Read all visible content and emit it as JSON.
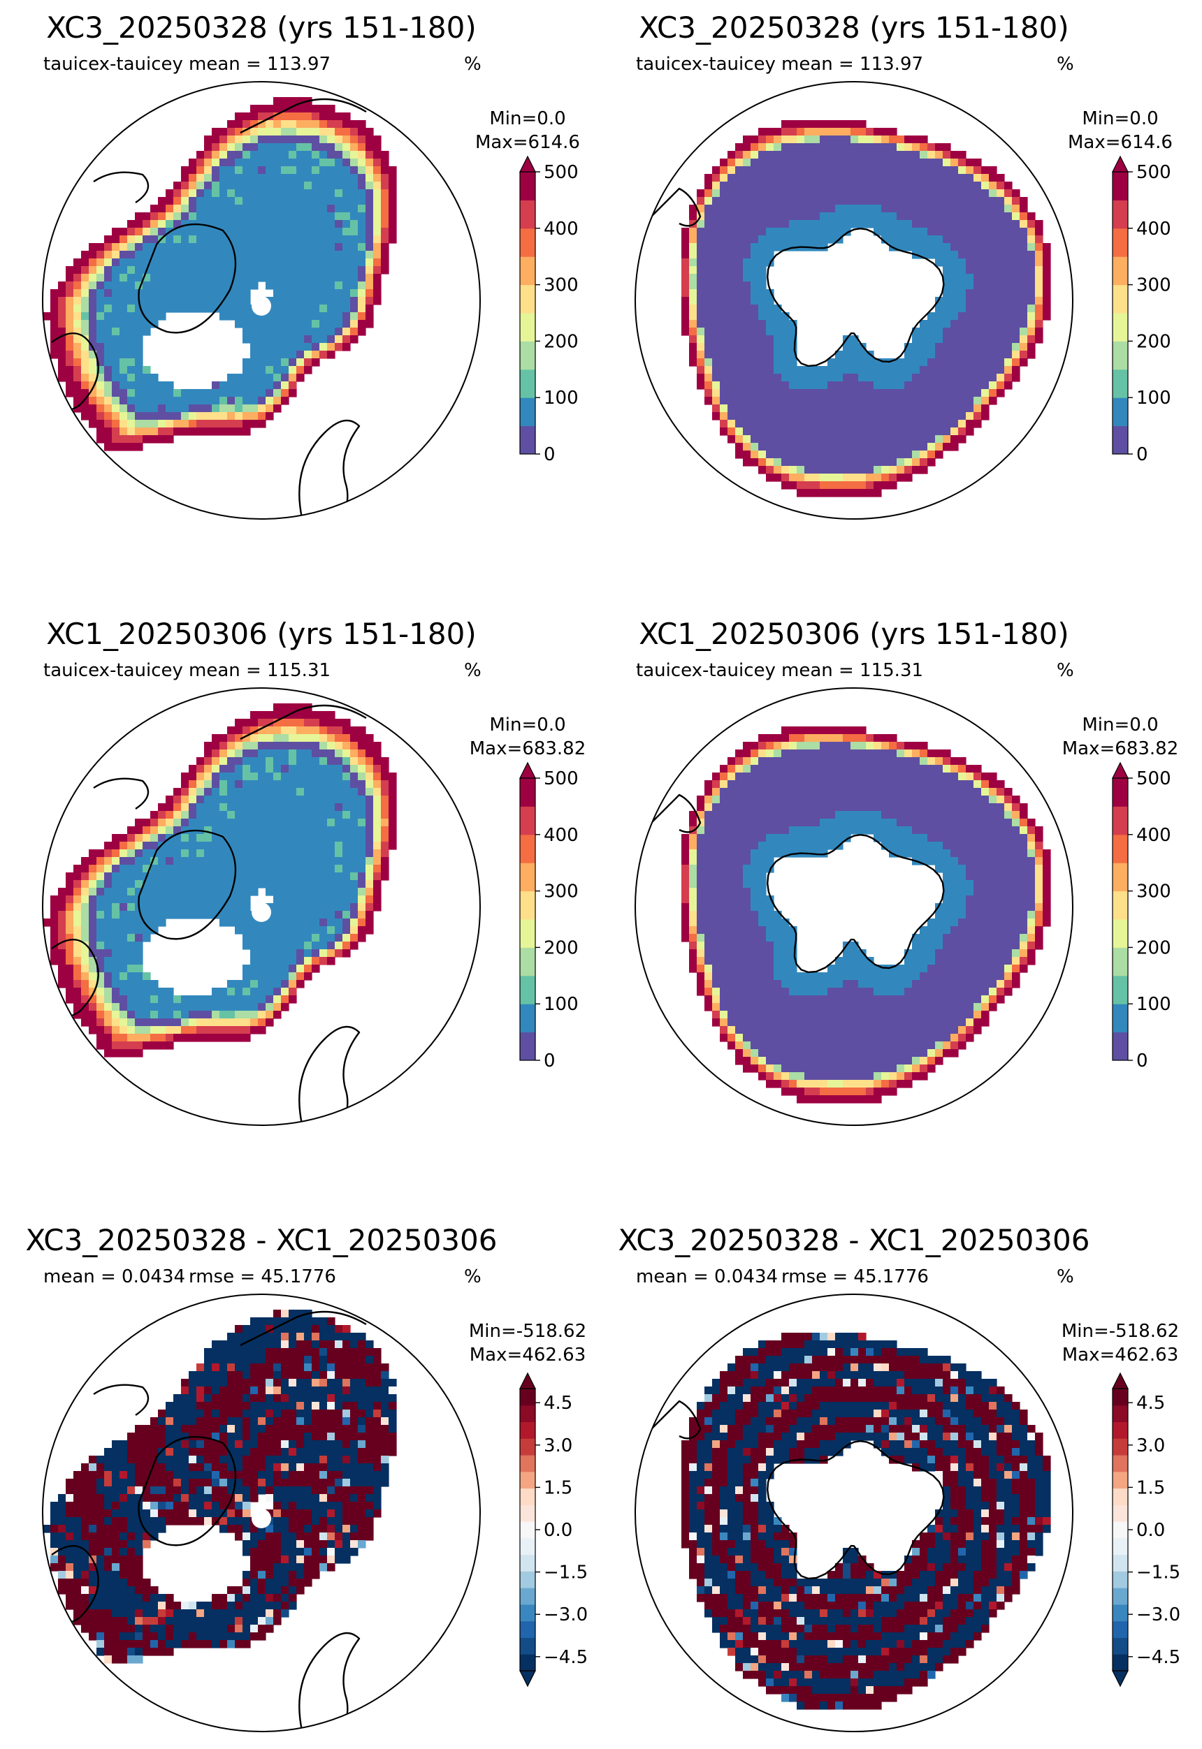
{
  "figure": {
    "panels": [
      {
        "title": "XC3_20250328 (yrs 151-180)",
        "left_label": "tauicex-tauicey",
        "mid_label": "mean = 113.97",
        "unit_label": "%",
        "min_label": "Min=0.0",
        "max_label": "Max=614.6",
        "hemisphere": "north",
        "scale": "seq",
        "variant": 0
      },
      {
        "title": "XC3_20250328 (yrs 151-180)",
        "left_label": "tauicex-tauicey",
        "mid_label": "mean = 113.97",
        "unit_label": "%",
        "min_label": "Min=0.0",
        "max_label": "Max=614.6",
        "hemisphere": "south",
        "scale": "seq",
        "variant": 0
      },
      {
        "title": "XC1_20250306 (yrs 151-180)",
        "left_label": "tauicex-tauicey",
        "mid_label": "mean = 115.31",
        "unit_label": "%",
        "min_label": "Min=0.0",
        "max_label": "Max=683.82",
        "hemisphere": "north",
        "scale": "seq",
        "variant": 1
      },
      {
        "title": "XC1_20250306 (yrs 151-180)",
        "left_label": "tauicex-tauicey",
        "mid_label": "mean = 115.31",
        "unit_label": "%",
        "min_label": "Min=0.0",
        "max_label": "Max=683.82",
        "hemisphere": "south",
        "scale": "seq",
        "variant": 1
      },
      {
        "title": "XC3_20250328 - XC1_20250306",
        "left_label": "mean = 0.0434",
        "mid_label": "rmse = 45.1776",
        "unit_label": "%",
        "min_label": "Min=-518.62",
        "max_label": "Max=462.63",
        "hemisphere": "north",
        "scale": "div",
        "variant": 2
      },
      {
        "title": "XC3_20250328 - XC1_20250306",
        "left_label": "mean = 0.0434",
        "mid_label": "rmse = 45.1776",
        "unit_label": "%",
        "min_label": "Min=-518.62",
        "max_label": "Max=462.63",
        "hemisphere": "south",
        "scale": "div",
        "variant": 2
      }
    ]
  },
  "colorbars": {
    "seq": {
      "ticks": [
        "0",
        "100",
        "200",
        "300",
        "400",
        "500"
      ],
      "tick_values": [
        0,
        100,
        200,
        300,
        400,
        500
      ],
      "range": [
        0,
        500
      ],
      "extend": "max",
      "colors": [
        "#5e4fa2",
        "#3288bd",
        "#66c2a5",
        "#abdda4",
        "#e6f598",
        "#fee08b",
        "#fdae61",
        "#f46d43",
        "#d53e4f",
        "#9e0142"
      ],
      "over_color": "#9e0142"
    },
    "div": {
      "ticks": [
        "4.5",
        "3.0",
        "1.5",
        "0.0",
        "−1.5",
        "−3.0",
        "−4.5"
      ],
      "tick_values": [
        4.5,
        3.0,
        1.5,
        0.0,
        -1.5,
        -3.0,
        -4.5
      ],
      "range": [
        -5,
        5
      ],
      "extend": "both",
      "colors": [
        "#053061",
        "#134c87",
        "#2166ac",
        "#3a87bf",
        "#6aa8d0",
        "#a2cbe2",
        "#d1e5f0",
        "#e8f1f6",
        "#f7f7f7",
        "#fbe5da",
        "#fddbc7",
        "#f4a582",
        "#e0745d",
        "#c63c3a",
        "#b2182b",
        "#8b0a25",
        "#67001f"
      ],
      "under_color": "#053061",
      "over_color": "#67001f"
    }
  }
}
